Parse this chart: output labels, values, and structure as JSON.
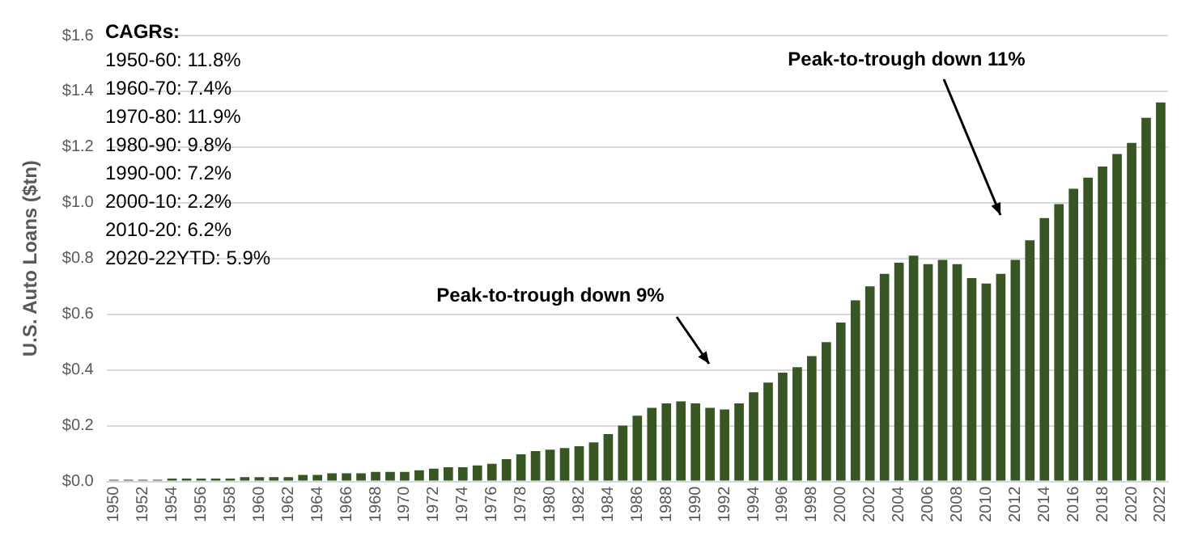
{
  "chart_data": {
    "type": "bar",
    "ylabel": "U.S. Auto Loans ($tn)",
    "categories": [
      "1950",
      null,
      "1952",
      null,
      "1954",
      null,
      "1956",
      null,
      "1958",
      null,
      "1960",
      null,
      "1962",
      null,
      "1964",
      null,
      "1966",
      null,
      "1968",
      null,
      "1970",
      null,
      "1972",
      null,
      "1974",
      null,
      "1976",
      null,
      "1978",
      null,
      "1980",
      null,
      "1982",
      null,
      "1984",
      null,
      "1986",
      null,
      "1988",
      null,
      "1990",
      null,
      "1992",
      null,
      "1994",
      null,
      "1996",
      null,
      "1998",
      null,
      "2000",
      null,
      "2002",
      null,
      "2004",
      null,
      "2006",
      null,
      "2008",
      null,
      "2010",
      null,
      "2012",
      null,
      "2014",
      null,
      "2016",
      null,
      "2018",
      null,
      "2020",
      null,
      "2022"
    ],
    "values": [
      0.006,
      0.006,
      0.006,
      0.006,
      0.01,
      0.01,
      0.01,
      0.01,
      0.01,
      0.015,
      0.015,
      0.015,
      0.015,
      0.023,
      0.023,
      0.029,
      0.029,
      0.029,
      0.034,
      0.034,
      0.034,
      0.04,
      0.046,
      0.051,
      0.051,
      0.057,
      0.063,
      0.08,
      0.097,
      0.109,
      0.114,
      0.12,
      0.126,
      0.14,
      0.17,
      0.2,
      0.236,
      0.264,
      0.28,
      0.287,
      0.28,
      0.264,
      0.258,
      0.28,
      0.32,
      0.355,
      0.39,
      0.41,
      0.45,
      0.5,
      0.57,
      0.65,
      0.7,
      0.745,
      0.785,
      0.81,
      0.78,
      0.795,
      0.78,
      0.73,
      0.71,
      0.745,
      0.795,
      0.865,
      0.945,
      0.995,
      1.05,
      1.09,
      1.13,
      1.175,
      1.215,
      1.305,
      1.36
    ],
    "color": "#375623",
    "ylim": [
      0,
      1.6
    ],
    "yticks": [
      {
        "value": 0,
        "label": "$0.0"
      },
      {
        "value": 0.2,
        "label": "$0.2"
      },
      {
        "value": 0.4,
        "label": "$0.4"
      },
      {
        "value": 0.6,
        "label": "$0.6"
      },
      {
        "value": 0.8,
        "label": "$0.8"
      },
      {
        "value": 1.0,
        "label": "$1.0"
      },
      {
        "value": 1.2,
        "label": "$1.2"
      },
      {
        "value": 1.4,
        "label": "$1.4"
      },
      {
        "value": 1.6,
        "label": "$1.6"
      }
    ],
    "grid": "y",
    "annotations": [
      "CAGRs:",
      "1950-60: 11.8%",
      "1960-70: 7.4%",
      "1970-80: 11.9%",
      "1980-90: 9.8%",
      "1990-00: 7.2%",
      "2000-10: 2.2%",
      "2010-20: 6.2%",
      "2020-22YTD: 5.9%",
      "Peak-to-trough down 9%",
      "Peak-to-trough down 11%"
    ]
  }
}
